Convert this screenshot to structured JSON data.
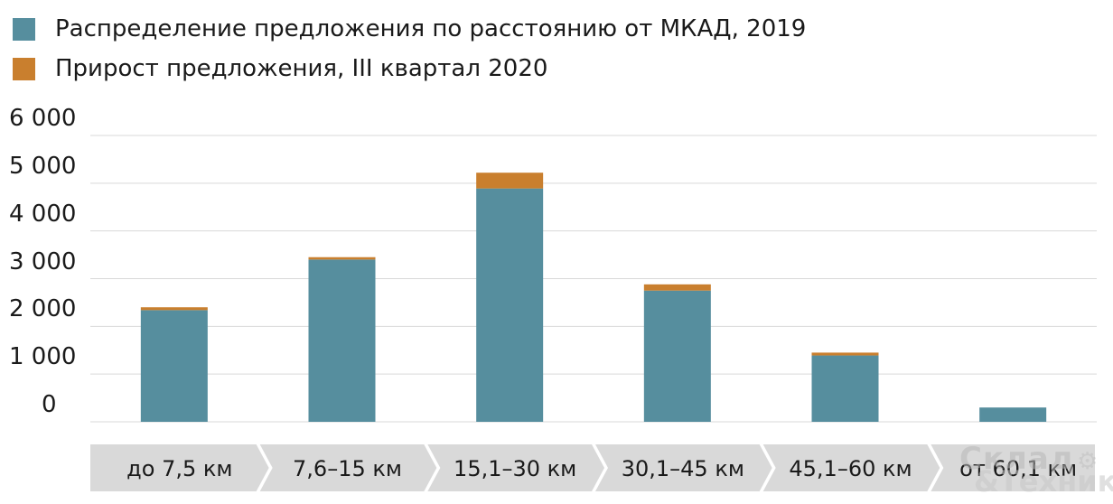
{
  "chart_data": {
    "type": "bar",
    "stacked": true,
    "categories": [
      "до 7,5 км",
      "7,6–15 км",
      "15,1–30 км",
      "30,1–45 км",
      "45,1–60 км",
      "от 60,1 км"
    ],
    "series": [
      {
        "name": "Распределение предложения по расстоянию от МКАД, 2019",
        "values": [
          2340,
          3400,
          4890,
          2750,
          1390,
          300
        ],
        "color": "#568e9e"
      },
      {
        "name": "Прирост предложения, III квартал 2020",
        "values": [
          60,
          50,
          330,
          130,
          60,
          0
        ],
        "color": "#c97f2e"
      }
    ],
    "yticks": [
      "0",
      "1 000",
      "2 000",
      "3 000",
      "4 000",
      "5 000",
      "6 000"
    ],
    "ylim": [
      0,
      6000
    ],
    "grid": true,
    "legend_position": "top-left",
    "category_band_color": "#d9d9d9"
  },
  "watermark": {
    "line1": "Склад",
    "line2": "&Техника",
    "icon": "forklift-icon"
  }
}
